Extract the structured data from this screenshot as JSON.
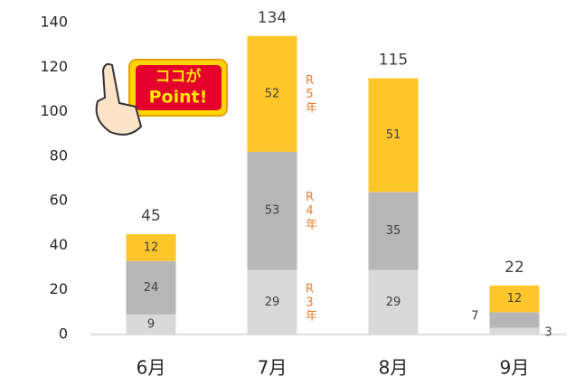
{
  "chart_data": {
    "type": "stacked_bar",
    "categories": [
      "6月",
      "7月",
      "8月",
      "9月"
    ],
    "series": [
      {
        "name": "R3年",
        "color": "#d9d9d9",
        "values": [
          9,
          29,
          29,
          3
        ]
      },
      {
        "name": "R4年",
        "color": "#b7b7b7",
        "values": [
          24,
          53,
          35,
          7
        ]
      },
      {
        "name": "R5年",
        "color": "#ffc629",
        "values": [
          12,
          52,
          51,
          12
        ]
      }
    ],
    "totals": [
      45,
      134,
      115,
      22
    ],
    "ylim": [
      0,
      140
    ],
    "yticks": [
      0,
      20,
      40,
      60,
      80,
      100,
      120,
      140
    ],
    "grid": false,
    "annotations": [
      "ココが",
      "Point!"
    ]
  }
}
